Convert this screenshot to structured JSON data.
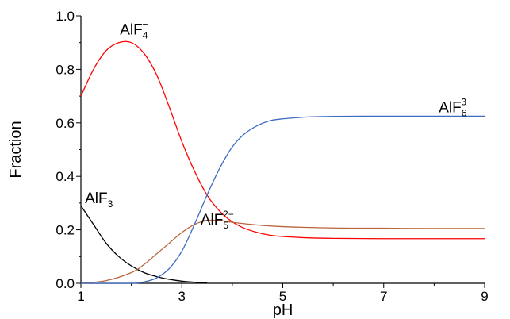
{
  "chart_data": {
    "type": "line",
    "title": "",
    "xlabel": "pH",
    "ylabel": "Fraction",
    "xlim": [
      1,
      9
    ],
    "ylim": [
      0,
      1
    ],
    "xticks": [
      1,
      3,
      5,
      7,
      9
    ],
    "xtick_labels": [
      "1",
      "3",
      "5",
      "7",
      "9"
    ],
    "yticks": [
      0,
      0.2,
      0.4,
      0.6,
      0.8,
      1
    ],
    "ytick_labels": [
      "0.0",
      "0.2",
      "0.4",
      "0.6",
      "0.8",
      "1.0"
    ],
    "grid": false,
    "legend": "none",
    "series": [
      {
        "name": "AlF3",
        "label": {
          "base": "AlF",
          "sub": "3",
          "sup": ""
        },
        "color": "#000000",
        "x": [
          1.0,
          1.25,
          1.5,
          1.75,
          2.0,
          2.25,
          2.5,
          2.75,
          3.0,
          3.25,
          3.5
        ],
        "y": [
          0.29,
          0.22,
          0.15,
          0.1,
          0.065,
          0.04,
          0.025,
          0.015,
          0.008,
          0.004,
          0.002
        ]
      },
      {
        "name": "AlF4-",
        "label": {
          "base": "AlF",
          "sub": "4",
          "sup": "−"
        },
        "color": "#ff0000",
        "x": [
          1.0,
          1.25,
          1.5,
          1.75,
          2.0,
          2.25,
          2.5,
          2.75,
          3.0,
          3.25,
          3.5,
          3.75,
          4.0,
          4.25,
          4.5,
          4.75,
          5.0,
          5.5,
          6.0,
          7.0,
          8.0,
          9.0
        ],
        "y": [
          0.7,
          0.8,
          0.87,
          0.9,
          0.9,
          0.86,
          0.78,
          0.66,
          0.53,
          0.42,
          0.33,
          0.27,
          0.23,
          0.205,
          0.19,
          0.18,
          0.175,
          0.17,
          0.168,
          0.167,
          0.167,
          0.167
        ]
      },
      {
        "name": "AlF5 2-",
        "label": {
          "base": "AlF",
          "sub": "5",
          "sup": "2−"
        },
        "color": "#b8653c",
        "x": [
          1.0,
          1.5,
          2.0,
          2.25,
          2.5,
          2.75,
          3.0,
          3.25,
          3.5,
          3.75,
          4.0,
          4.5,
          5.0,
          6.0,
          7.0,
          8.0,
          9.0
        ],
        "y": [
          0.0,
          0.01,
          0.04,
          0.07,
          0.11,
          0.15,
          0.19,
          0.22,
          0.235,
          0.235,
          0.228,
          0.218,
          0.212,
          0.207,
          0.206,
          0.205,
          0.205
        ]
      },
      {
        "name": "AlF6 3-",
        "label": {
          "base": "AlF",
          "sub": "6",
          "sup": "3−"
        },
        "color": "#3d6bc4",
        "x": [
          1.0,
          2.0,
          2.25,
          2.5,
          2.75,
          3.0,
          3.25,
          3.5,
          3.75,
          4.0,
          4.25,
          4.5,
          4.75,
          5.0,
          5.5,
          6.0,
          7.0,
          8.0,
          9.0
        ],
        "y": [
          0.0,
          0.0,
          0.005,
          0.02,
          0.055,
          0.12,
          0.22,
          0.33,
          0.43,
          0.51,
          0.56,
          0.59,
          0.608,
          0.615,
          0.622,
          0.624,
          0.625,
          0.625,
          0.625
        ]
      }
    ],
    "annotations": [
      {
        "series": 0,
        "x": 1.08,
        "y": 0.3,
        "anchor": "start"
      },
      {
        "series": 1,
        "x": 2.05,
        "y": 0.93,
        "anchor": "middle"
      },
      {
        "series": 2,
        "x": 3.7,
        "y": 0.22,
        "anchor": "middle"
      },
      {
        "series": 3,
        "x": 8.75,
        "y": 0.64,
        "anchor": "end"
      }
    ]
  }
}
